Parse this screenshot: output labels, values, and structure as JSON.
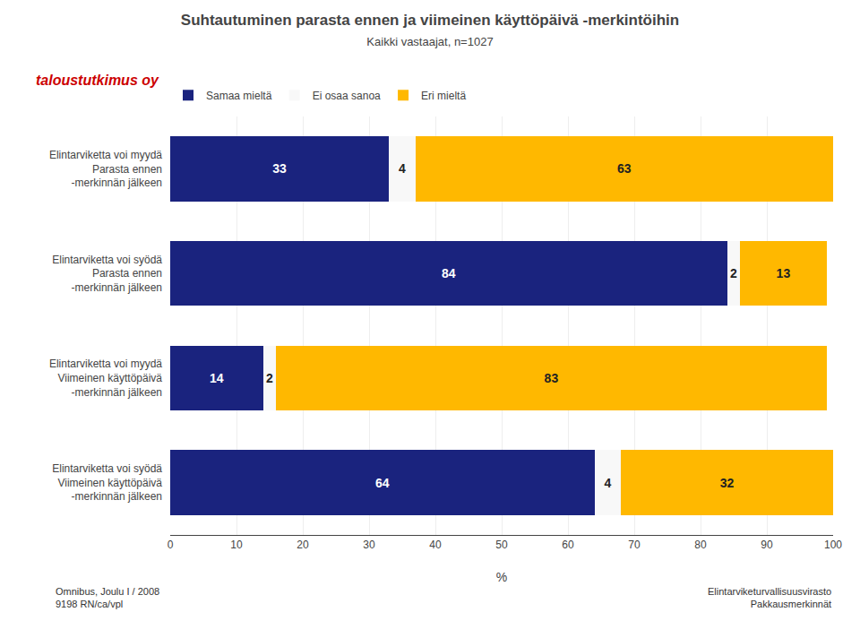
{
  "chart_data": {
    "type": "bar",
    "orientation": "horizontal",
    "stacked": true,
    "title": "Suhtautuminen parasta ennen ja viimeinen käyttöpäivä -merkintöihin",
    "subtitle": "Kaikki vastaajat, n=1027",
    "categories": [
      "Elintarviketta voi myydä\nParasta ennen\n-merkinnän jälkeen",
      "Elintarviketta voi syödä\nParasta ennen\n-merkinnän jälkeen",
      "Elintarviketta voi myydä\nViimeinen käyttöpäivä\n-merkinnän jälkeen",
      "Elintarviketta voi syödä\nViimeinen käyttöpäivä\n-merkinnän jälkeen"
    ],
    "series": [
      {
        "name": "Samaa mieltä",
        "color": "#1a237e",
        "values": [
          33,
          84,
          14,
          64
        ]
      },
      {
        "name": "Ei osaa sanoa",
        "color": "#f8f8f8",
        "values": [
          4,
          2,
          2,
          4
        ]
      },
      {
        "name": "Eri mieltä",
        "color": "#ffb800",
        "values": [
          63,
          13,
          83,
          32
        ]
      }
    ],
    "xlabel": "%",
    "xlim": [
      0,
      100
    ],
    "xticks": [
      0,
      10,
      20,
      30,
      40,
      50,
      60,
      70,
      80,
      90,
      100
    ],
    "grid": true,
    "legend": "top",
    "data_labels": true,
    "annotations": [
      "taloustutkimus oy",
      "Omnibus, Joulu I / 2008\n9198 RN/ca/vpl",
      "Elintarviketurvallisuusvirasto\nPakkausmerkinnät"
    ]
  }
}
